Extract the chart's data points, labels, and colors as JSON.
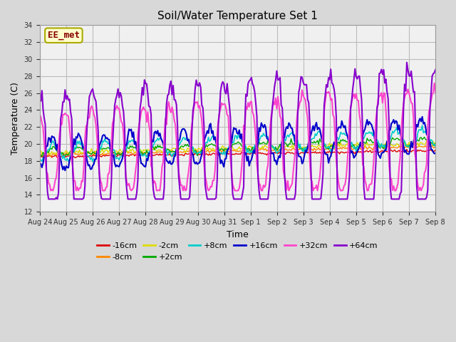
{
  "title": "Soil/Water Temperature Set 1",
  "xlabel": "Time",
  "ylabel": "Temperature (C)",
  "ylim": [
    12,
    34
  ],
  "yticks": [
    12,
    14,
    16,
    18,
    20,
    22,
    24,
    26,
    28,
    30,
    32,
    34
  ],
  "legend_label": "EE_met",
  "legend_box_color": "#ffffcc",
  "legend_box_border": "#aaaa00",
  "legend_text_color": "#880000",
  "series": [
    {
      "label": "-16cm",
      "color": "#dd0000"
    },
    {
      "label": "-8cm",
      "color": "#ff8800"
    },
    {
      "label": "-2cm",
      "color": "#dddd00"
    },
    {
      "label": "+2cm",
      "color": "#00aa00"
    },
    {
      "label": "+8cm",
      "color": "#00cccc"
    },
    {
      "label": "+16cm",
      "color": "#0000cc"
    },
    {
      "label": "+32cm",
      "color": "#ff44cc"
    },
    {
      "label": "+64cm",
      "color": "#8800cc"
    }
  ],
  "bg_color": "#d8d8d8",
  "plot_bg_color": "#f0f0f0",
  "grid_color": "#bbbbbb",
  "tick_labels": [
    "Aug 24",
    "Aug 25",
    "Aug 26",
    "Aug 27",
    "Aug 28",
    "Aug 29",
    "Aug 30",
    "Aug 31",
    "Sep 1",
    "Sep 2",
    "Sep 3",
    "Sep 4",
    "Sep 5",
    "Sep 6",
    "Sep 7",
    "Sep 8"
  ],
  "figsize": [
    6.4,
    4.8
  ],
  "dpi": 100
}
